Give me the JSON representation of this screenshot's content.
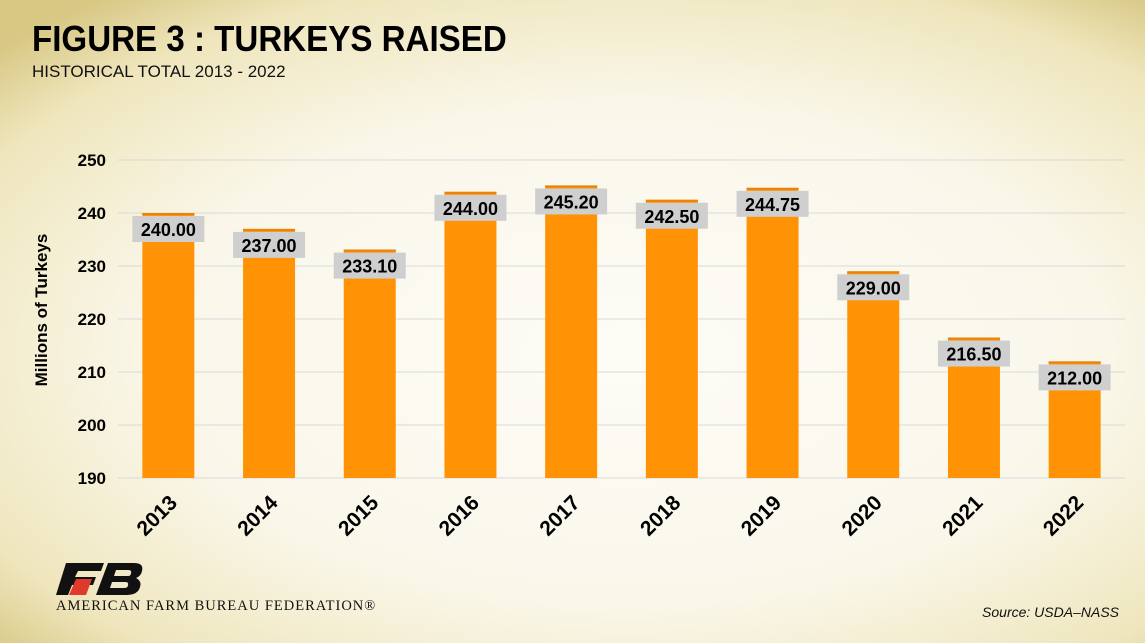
{
  "chart_data": {
    "type": "bar",
    "title": "FIGURE 3 : TURKEYS RAISED",
    "subtitle": "HISTORICAL TOTAL 2013 - 2022",
    "ylabel": "Millions of Turkeys",
    "xlabel": "",
    "categories": [
      "2013",
      "2014",
      "2015",
      "2016",
      "2017",
      "2018",
      "2019",
      "2020",
      "2021",
      "2022"
    ],
    "values": [
      240.0,
      237.0,
      233.1,
      244.0,
      245.2,
      242.5,
      244.75,
      229.0,
      216.5,
      212.0
    ],
    "data_labels": [
      "240.00",
      "237.00",
      "233.10",
      "244.00",
      "245.20",
      "242.50",
      "244.75",
      "229.00",
      "216.50",
      "212.00"
    ],
    "ylim": [
      190,
      250
    ],
    "yticks": [
      "190",
      "200",
      "210",
      "220",
      "230",
      "240",
      "250"
    ],
    "grid": true,
    "bar_color": "#ff9305",
    "label_box_color": "#cfcfcf"
  },
  "footer": {
    "organization": "AMERICAN FARM BUREAU FEDERATION®",
    "source": "Source: USDA–NASS"
  }
}
